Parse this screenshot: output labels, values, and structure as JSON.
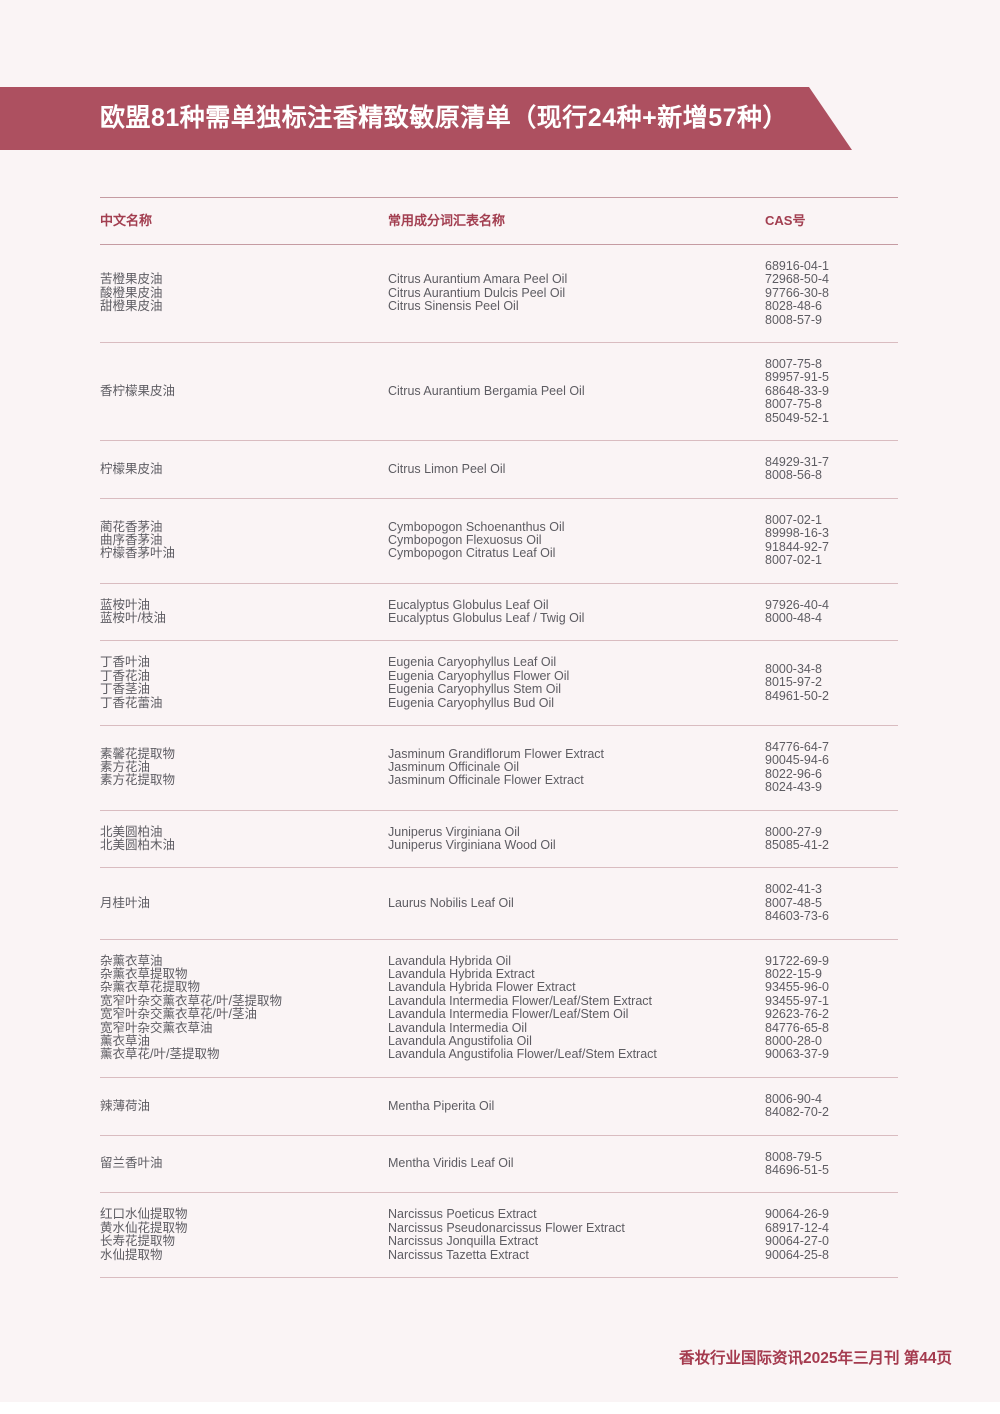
{
  "page": {
    "title": "欧盟81种需单独标注香精致敏原清单（现行24种+新增57种）",
    "footer": "香妆行业国际资讯2025年三月刊 第44页"
  },
  "colors": {
    "banner": "#ad5060",
    "header_text": "#a23e50",
    "body_text": "#5d5c62",
    "page_bg": "#faf4f5",
    "header_rule": "#c59ba2",
    "row_rule": "#d9bcc0"
  },
  "table": {
    "headers": [
      "中文名称",
      "常用成分词汇表名称",
      "CAS号"
    ],
    "rows": [
      {
        "cn": [
          "苦橙果皮油",
          "酸橙果皮油",
          "甜橙果皮油"
        ],
        "inci": [
          "Citrus Aurantium Amara Peel Oil",
          "Citrus Aurantium Dulcis Peel Oil",
          "Citrus Sinensis Peel Oil"
        ],
        "cas": [
          "68916-04-1",
          "72968-50-4",
          "97766-30-8",
          "8028-48-6",
          "8008-57-9"
        ]
      },
      {
        "cn": [
          "香柠檬果皮油"
        ],
        "inci": [
          "Citrus Aurantium Bergamia Peel Oil"
        ],
        "cas": [
          "8007-75-8",
          "89957-91-5",
          "68648-33-9",
          "8007-75-8",
          "85049-52-1"
        ]
      },
      {
        "cn": [
          "柠檬果皮油"
        ],
        "inci": [
          "Citrus Limon Peel Oil"
        ],
        "cas": [
          "84929-31-7",
          "8008-56-8"
        ]
      },
      {
        "cn": [
          "蔺花香茅油",
          "曲序香茅油",
          "柠檬香茅叶油"
        ],
        "inci": [
          "Cymbopogon Schoenanthus Oil",
          "Cymbopogon Flexuosus Oil",
          "Cymbopogon Citratus Leaf Oil"
        ],
        "cas": [
          "8007-02-1",
          "89998-16-3",
          "91844-92-7",
          "8007-02-1"
        ]
      },
      {
        "cn": [
          "蓝桉叶油",
          "蓝桉叶/枝油"
        ],
        "inci": [
          "Eucalyptus Globulus Leaf Oil",
          "Eucalyptus Globulus Leaf / Twig Oil"
        ],
        "cas": [
          "97926-40-4",
          "8000-48-4"
        ]
      },
      {
        "cn": [
          "丁香叶油",
          "丁香花油",
          "丁香茎油",
          "丁香花蕾油"
        ],
        "inci": [
          "Eugenia Caryophyllus Leaf Oil",
          "Eugenia Caryophyllus Flower Oil",
          "Eugenia Caryophyllus Stem Oil",
          "Eugenia Caryophyllus Bud Oil"
        ],
        "cas": [
          "8000-34-8",
          "8015-97-2",
          "84961-50-2"
        ]
      },
      {
        "cn": [
          "素馨花提取物",
          "素方花油",
          "素方花提取物"
        ],
        "inci": [
          "Jasminum Grandiflorum Flower Extract",
          "Jasminum Officinale Oil",
          "Jasminum Officinale Flower Extract"
        ],
        "cas": [
          "84776-64-7",
          "90045-94-6",
          "8022-96-6",
          "8024-43-9"
        ]
      },
      {
        "cn": [
          "北美圆柏油",
          "北美圆柏木油"
        ],
        "inci": [
          "Juniperus Virginiana Oil",
          "Juniperus Virginiana Wood Oil"
        ],
        "cas": [
          "8000-27-9",
          "85085-41-2"
        ]
      },
      {
        "cn": [
          "月桂叶油"
        ],
        "inci": [
          "Laurus Nobilis Leaf Oil"
        ],
        "cas": [
          "8002-41-3",
          "8007-48-5",
          "84603-73-6"
        ]
      },
      {
        "cn": [
          "杂薰衣草油",
          "杂薰衣草提取物",
          "杂薰衣草花提取物",
          "宽窄叶杂交薰衣草花/叶/茎提取物",
          "宽窄叶杂交薰衣草花/叶/茎油",
          "宽窄叶杂交薰衣草油",
          "薰衣草油",
          "薰衣草花/叶/茎提取物"
        ],
        "inci": [
          "Lavandula Hybrida Oil",
          "Lavandula Hybrida Extract",
          "Lavandula Hybrida Flower Extract",
          "Lavandula Intermedia Flower/Leaf/Stem Extract",
          "Lavandula Intermedia Flower/Leaf/Stem Oil",
          "Lavandula Intermedia Oil",
          "Lavandula Angustifolia Oil",
          "Lavandula Angustifolia Flower/Leaf/Stem Extract"
        ],
        "cas": [
          "91722-69-9",
          "8022-15-9",
          "93455-96-0",
          "93455-97-1",
          "92623-76-2",
          "84776-65-8",
          "8000-28-0",
          "90063-37-9"
        ]
      },
      {
        "cn": [
          "辣薄荷油"
        ],
        "inci": [
          "Mentha Piperita Oil"
        ],
        "cas": [
          "8006-90-4",
          "84082-70-2"
        ]
      },
      {
        "cn": [
          "留兰香叶油"
        ],
        "inci": [
          "Mentha Viridis Leaf Oil"
        ],
        "cas": [
          "8008-79-5",
          "84696-51-5"
        ]
      },
      {
        "cn": [
          "红口水仙提取物",
          "黄水仙花提取物",
          "长寿花提取物",
          "水仙提取物"
        ],
        "inci": [
          "Narcissus Poeticus Extract",
          "Narcissus Pseudonarcissus Flower Extract",
          "Narcissus Jonquilla Extract",
          "Narcissus Tazetta Extract"
        ],
        "cas": [
          "90064-26-9",
          "68917-12-4",
          "90064-27-0",
          "90064-25-8"
        ]
      }
    ]
  }
}
